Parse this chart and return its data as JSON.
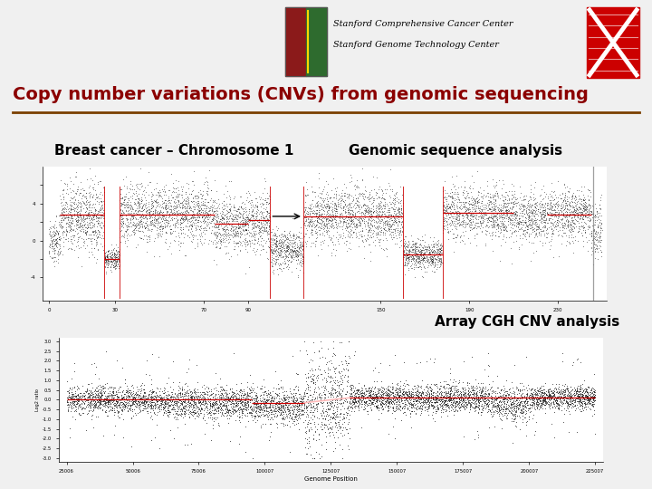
{
  "title": "Copy number variations (CNVs) from genomic sequencing",
  "title_color": "#8B0000",
  "title_fontsize": 14,
  "header_line_color": "#7B3F00",
  "bg_color": "#F0F0F0",
  "plot_bg_color": "#FFFFFF",
  "stanford_text_line1": "Stanford Comprehensive Cancer Center",
  "stanford_text_line2": "Stanford Genome Technology Center",
  "label_top_left": "Breast cancer – Chromosome 1",
  "label_top_right": "Genomic sequence analysis",
  "label_bottom_right": "Array CGH CNV analysis",
  "plot2_xlabel": "Genome Position",
  "scatter_color": "#111111",
  "red_line_color": "#cc0000",
  "pink_line_color": "#ffbbbb",
  "seed": 42
}
